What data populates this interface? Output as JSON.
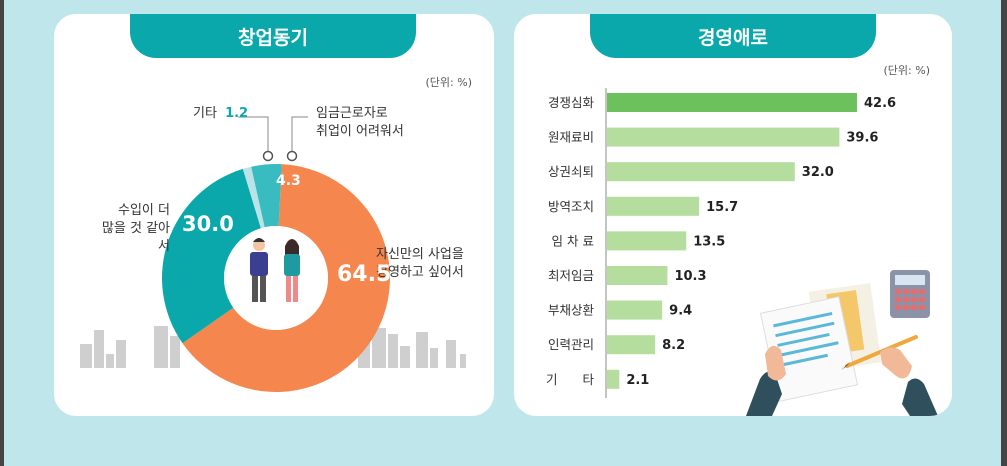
{
  "left": {
    "title": "창업동기",
    "unit": "(단위: %)",
    "chart_data": {
      "type": "pie",
      "title": "창업동기",
      "unit": "%",
      "slices": [
        {
          "label": "자신만의 사업을 경영하고 싶어서",
          "label_lines": [
            "자신만의 사업을",
            "경영하고 싶어서"
          ],
          "value": 64.5,
          "color": "#f5874e"
        },
        {
          "label": "수입이 더 많을 것 같아서",
          "label_lines": [
            "수입이 더",
            "많을 것 같아서"
          ],
          "value": 30.0,
          "color": "#0aa8ab"
        },
        {
          "label": "기타",
          "label_lines": [
            "기타"
          ],
          "value": 1.2,
          "color": "#b9e3e6"
        },
        {
          "label": "임금근로자로 취업이 어려워서",
          "label_lines": [
            "임금근로자로",
            "취업이 어려워서"
          ],
          "value": 4.3,
          "color": "#39bcc0"
        }
      ],
      "value_labels": [
        "64.5",
        "30.0",
        "1.2",
        "4.3"
      ]
    }
  },
  "right": {
    "title": "경영애로",
    "unit": "(단위: %)",
    "chart_data": {
      "type": "bar",
      "orientation": "horizontal",
      "title": "경영애로",
      "unit": "%",
      "categories": [
        "경쟁심화",
        "원재료비",
        "상권쇠퇴",
        "방역조치",
        "임 차 료",
        "최저임금",
        "부채상환",
        "인력관리",
        "기　　타"
      ],
      "values": [
        42.6,
        39.6,
        32.0,
        15.7,
        13.5,
        10.3,
        9.4,
        8.2,
        2.1
      ],
      "value_labels": [
        "42.6",
        "39.6",
        "32.0",
        "15.7",
        "13.5",
        "10.3",
        "9.4",
        "8.2",
        "2.1"
      ],
      "highlight_color": "#6cc15c",
      "bar_color": "#b4dd9e"
    }
  }
}
